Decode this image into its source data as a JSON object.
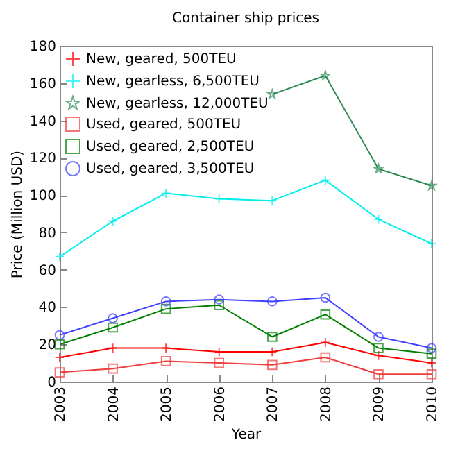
{
  "chart_data": {
    "type": "line",
    "title": "Container ship prices",
    "xlabel": "Year",
    "ylabel": "Price (Million USD)",
    "x": [
      2003,
      2004,
      2005,
      2006,
      2007,
      2008,
      2009,
      2010
    ],
    "xlim": [
      2003,
      2010
    ],
    "xticks": [
      2003,
      2004,
      2005,
      2006,
      2007,
      2008,
      2009,
      2010
    ],
    "ylim": [
      0,
      180
    ],
    "yticks": [
      0,
      20,
      40,
      60,
      80,
      100,
      120,
      140,
      160,
      180
    ],
    "grid": false,
    "legend": "top left",
    "series": [
      {
        "name": "New, geared, 500TEU",
        "color": "#ff0000",
        "marker": "cross",
        "values": [
          13,
          18,
          18,
          16,
          16,
          21,
          14,
          10
        ]
      },
      {
        "name": "New, gearless, 6,500TEU",
        "color": "#00eeee",
        "marker": "cross",
        "values": [
          67,
          86,
          101,
          98,
          97,
          108,
          87,
          74
        ]
      },
      {
        "name": "New, gearless, 12,000TEU",
        "color": "#2e8b57",
        "marker": "star",
        "values": [
          null,
          null,
          null,
          null,
          154,
          164,
          114,
          105
        ]
      },
      {
        "name": "Used, geared, 500TEU",
        "color": "#f03c3c",
        "marker": "square",
        "values": [
          5,
          7,
          11,
          10,
          9,
          13,
          4,
          4
        ]
      },
      {
        "name": "Used, geared, 2,500TEU",
        "color": "#008000",
        "marker": "square",
        "values": [
          20,
          29,
          39,
          41,
          24,
          36,
          18,
          15
        ]
      },
      {
        "name": "Used, geared, 3,500TEU",
        "color": "#4040ff",
        "marker": "circle",
        "values": [
          25,
          34,
          43,
          44,
          43,
          45,
          24,
          18
        ]
      }
    ]
  }
}
